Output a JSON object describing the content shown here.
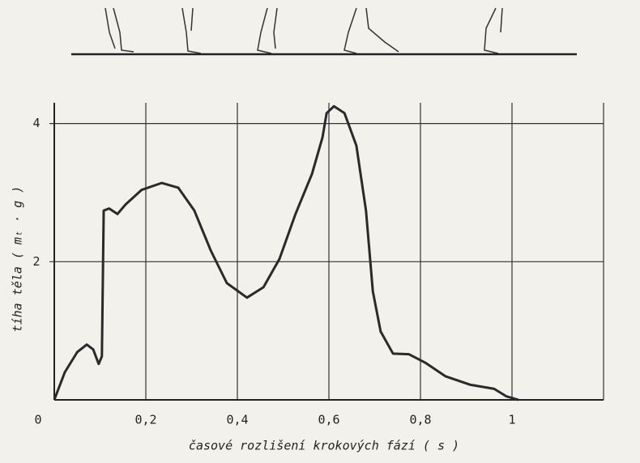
{
  "chart_data": {
    "type": "line",
    "x_label": "časové rozlišení krokových fází ( s )",
    "y_label": "tíha těla ( mₜ · g )",
    "x": [
      0,
      0.023,
      0.05,
      0.071,
      0.085,
      0.097,
      0.104,
      0.108,
      0.12,
      0.138,
      0.156,
      0.191,
      0.235,
      0.271,
      0.306,
      0.342,
      0.377,
      0.421,
      0.457,
      0.492,
      0.527,
      0.563,
      0.586,
      0.595,
      0.611,
      0.634,
      0.66,
      0.681,
      0.696,
      0.713,
      0.74,
      0.775,
      0.81,
      0.855,
      0.908,
      0.961,
      0.988,
      1.014
    ],
    "series": [
      {
        "color": "#2a2a2a",
        "values": [
          0,
          0.4,
          0.69,
          0.8,
          0.73,
          0.52,
          0.63,
          2.74,
          2.77,
          2.69,
          2.83,
          3.04,
          3.14,
          3.07,
          2.74,
          2.16,
          1.69,
          1.48,
          1.63,
          2.04,
          2.69,
          3.27,
          3.8,
          4.15,
          4.25,
          4.15,
          3.68,
          2.74,
          1.57,
          0.99,
          0.67,
          0.66,
          0.54,
          0.34,
          0.22,
          0.16,
          0.05,
          0
        ]
      }
    ],
    "xlim": [
      0,
      1.2
    ],
    "ylim": [
      0,
      4.3
    ],
    "xticks": [
      0,
      {
        "value": 0.2,
        "label": "0,2"
      },
      {
        "value": 0.4,
        "label": "0,4"
      },
      {
        "value": 0.6,
        "label": "0,6"
      },
      {
        "value": 0.8,
        "label": "0,8"
      },
      1
    ],
    "yticks": [
      2,
      4
    ],
    "grid": true
  }
}
